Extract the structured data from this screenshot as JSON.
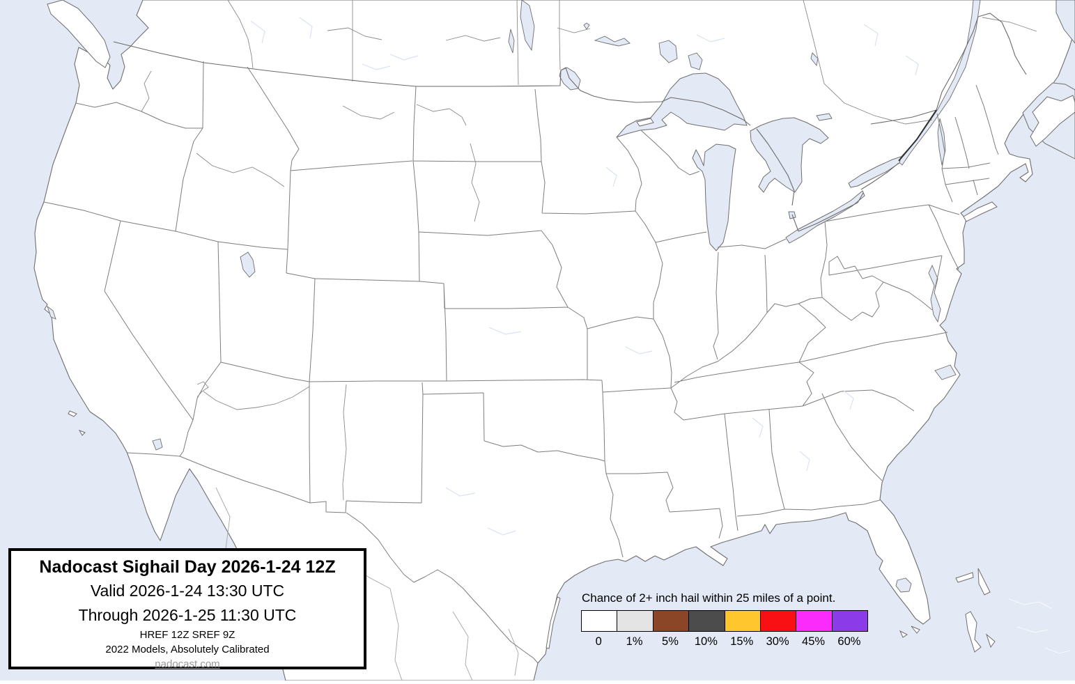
{
  "title_box": {
    "title": "Nadocast Sighail Day 2026-1-24 12Z",
    "valid_line": "Valid 2026-1-24 13:30 UTC",
    "through_line": "Through 2026-1-25 11:30 UTC",
    "models_line": "HREF 12Z SREF 9Z",
    "calibration_line": "2022 Models, Absolutely Calibrated",
    "website": "nadocast.com"
  },
  "legend": {
    "title": "Chance of 2+ inch hail within 25 miles of a point.",
    "items": [
      {
        "label": "0",
        "color": "#FFFFFF"
      },
      {
        "label": "1%",
        "color": "#E4E4E4"
      },
      {
        "label": "5%",
        "color": "#8B4627"
      },
      {
        "label": "10%",
        "color": "#4C4C4C"
      },
      {
        "label": "15%",
        "color": "#FFC62E"
      },
      {
        "label": "30%",
        "color": "#F81014"
      },
      {
        "label": "45%",
        "color": "#FB2BFB"
      },
      {
        "label": "60%",
        "color": "#8C3BE8"
      }
    ]
  },
  "map": {
    "region": "Continental United States with state borders, southern Canada and northern Mexico",
    "ocean_color": "#E4E9F6",
    "land_color": "#FFFFFF",
    "state_border_color": "#7D7D7D",
    "coast_color": "#6E6E6E",
    "country_border_color": "#2F2F2F"
  }
}
